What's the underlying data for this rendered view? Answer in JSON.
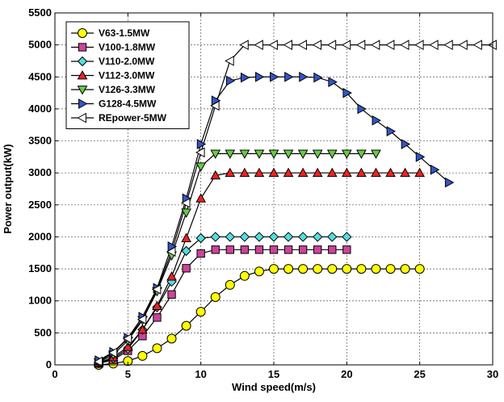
{
  "chart_data": {
    "type": "line",
    "title": "",
    "xlabel": "Wind speed(m/s)",
    "ylabel": "Power output(kW)",
    "xlim": [
      0,
      30
    ],
    "ylim": [
      0,
      5500
    ],
    "xticks": [
      0,
      5,
      10,
      15,
      20,
      25,
      30
    ],
    "yticks": [
      0,
      500,
      1000,
      1500,
      2000,
      2500,
      3000,
      3500,
      4000,
      4500,
      5000,
      5500
    ],
    "xtick_labels": [
      "0",
      "5",
      "10",
      "15",
      "20",
      "25",
      "30"
    ],
    "ytick_labels": [
      "0",
      "500",
      "1000",
      "1500",
      "2000",
      "2500",
      "3000",
      "3500",
      "4000",
      "4500",
      "5000",
      "5500"
    ],
    "grid": true,
    "legend_position": "top-left",
    "series": [
      {
        "name": "V63-1.5MW",
        "marker": "circle",
        "color": "#ffff00",
        "x": [
          3,
          4,
          5,
          6,
          7,
          8,
          9,
          10,
          11,
          12,
          13,
          14,
          15,
          16,
          17,
          18,
          19,
          20,
          21,
          22,
          23,
          24,
          25
        ],
        "y": [
          0,
          20,
          60,
          140,
          260,
          410,
          610,
          830,
          1060,
          1250,
          1390,
          1460,
          1500,
          1500,
          1500,
          1500,
          1500,
          1500,
          1500,
          1500,
          1500,
          1500,
          1500
        ]
      },
      {
        "name": "V100-1.8MW",
        "marker": "square",
        "color": "#cc4499",
        "x": [
          3,
          4,
          5,
          6,
          7,
          8,
          9,
          10,
          11,
          12,
          13,
          14,
          15,
          16,
          17,
          18,
          19,
          20
        ],
        "y": [
          20,
          80,
          220,
          450,
          740,
          1100,
          1510,
          1740,
          1800,
          1800,
          1800,
          1800,
          1800,
          1800,
          1800,
          1800,
          1800,
          1800
        ]
      },
      {
        "name": "V110-2.0MW",
        "marker": "diamond",
        "color": "#55dddd",
        "x": [
          3,
          4,
          5,
          6,
          7,
          8,
          9,
          10,
          11,
          12,
          13,
          14,
          15,
          16,
          17,
          18,
          19,
          20
        ],
        "y": [
          25,
          100,
          250,
          550,
          900,
          1300,
          1780,
          1980,
          2000,
          2000,
          2000,
          2000,
          2000,
          2000,
          2000,
          2000,
          2000,
          2000
        ]
      },
      {
        "name": "V112-3.0MW",
        "marker": "triangle-up",
        "color": "#ee2222",
        "x": [
          3,
          4,
          5,
          6,
          7,
          8,
          9,
          10,
          11,
          12,
          13,
          14,
          15,
          16,
          17,
          18,
          19,
          20,
          21,
          22,
          23,
          24,
          25
        ],
        "y": [
          30,
          120,
          280,
          550,
          920,
          1380,
          1980,
          2600,
          2960,
          3000,
          3000,
          3000,
          3000,
          3000,
          3000,
          3000,
          3000,
          3000,
          3000,
          3000,
          3000,
          3000,
          3000
        ]
      },
      {
        "name": "V126-3.3MW",
        "marker": "triangle-down",
        "color": "#66cc44",
        "x": [
          3,
          4,
          5,
          6,
          7,
          8,
          9,
          10,
          11,
          12,
          13,
          14,
          15,
          16,
          17,
          18,
          19,
          20,
          21,
          22
        ],
        "y": [
          40,
          160,
          380,
          700,
          1150,
          1710,
          2380,
          3100,
          3300,
          3300,
          3300,
          3300,
          3300,
          3300,
          3300,
          3300,
          3300,
          3300,
          3300,
          3300
        ]
      },
      {
        "name": "G128-4.5MW",
        "marker": "triangle-right",
        "color": "#3355cc",
        "x": [
          3,
          4,
          5,
          6,
          7,
          8,
          9,
          10,
          11,
          12,
          13,
          14,
          15,
          16,
          17,
          18,
          19,
          20,
          21,
          22,
          23,
          24,
          25,
          26,
          27
        ],
        "y": [
          70,
          200,
          420,
          750,
          1200,
          1850,
          2600,
          3450,
          4130,
          4440,
          4490,
          4500,
          4500,
          4500,
          4500,
          4490,
          4420,
          4250,
          4000,
          3820,
          3650,
          3450,
          3250,
          3050,
          2850
        ]
      },
      {
        "name": "REpower-5MW",
        "marker": "triangle-left",
        "color": "#ffffff",
        "x": [
          3,
          4,
          5,
          6,
          7,
          8,
          9,
          10,
          11,
          12,
          13,
          14,
          15,
          16,
          17,
          18,
          19,
          20,
          21,
          22,
          23,
          24,
          25,
          26,
          27,
          28,
          29,
          30
        ],
        "y": [
          50,
          190,
          410,
          710,
          1180,
          1770,
          2530,
          3320,
          4050,
          4750,
          5000,
          5000,
          5000,
          5000,
          5000,
          5000,
          5000,
          5000,
          5000,
          5000,
          5000,
          5000,
          5000,
          5000,
          5000,
          5000,
          5000,
          5000
        ]
      }
    ]
  }
}
